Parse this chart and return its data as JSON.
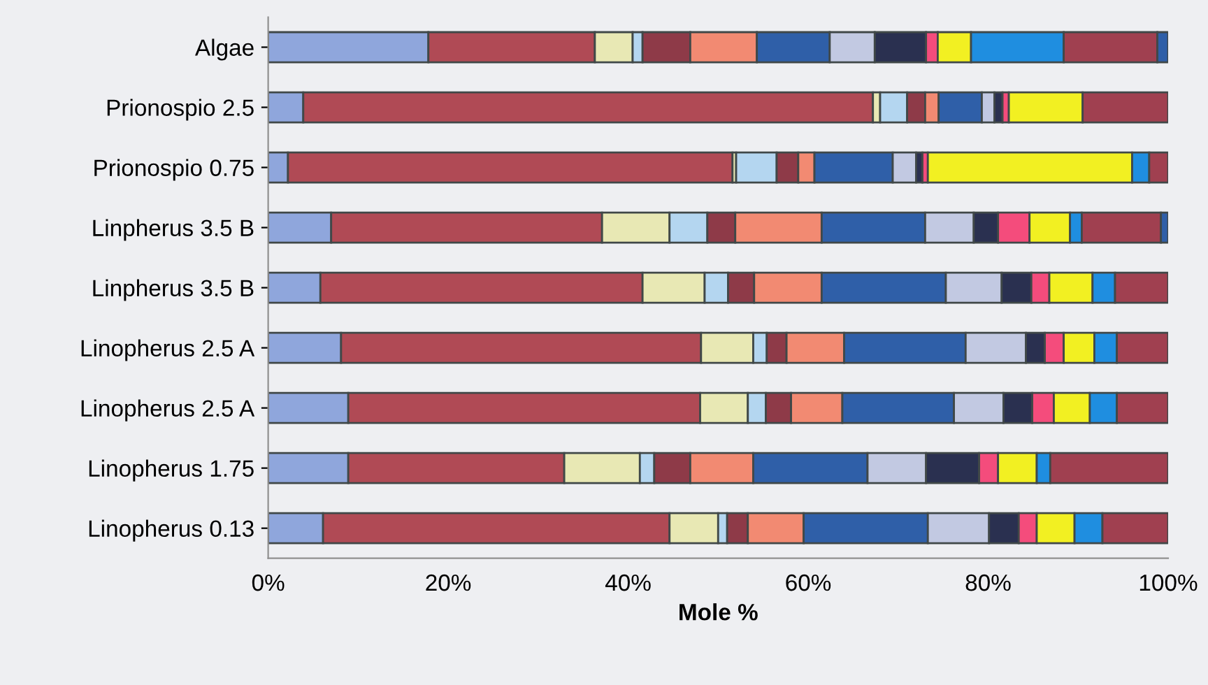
{
  "chart_data": {
    "type": "bar",
    "orientation": "horizontal",
    "stacked": true,
    "xlabel": "Mole %",
    "categories": [
      "Algae",
      "Prionospio 2.5",
      "Prionospio 0.75",
      "Linpherus 3.5 B",
      "Linpherus 3.5 B",
      "Linopherus 2.5 A",
      "Linopherus 2.5 A",
      "Linopherus 1.75",
      "Linopherus 0.13"
    ],
    "xlim": [
      0,
      100
    ],
    "xticks": [
      {
        "value": 0,
        "label": "0%"
      },
      {
        "value": 20,
        "label": "20%"
      },
      {
        "value": 40,
        "label": "40%"
      },
      {
        "value": 60,
        "label": "60%"
      },
      {
        "value": 80,
        "label": "80%"
      },
      {
        "value": 100,
        "label": "100%"
      }
    ],
    "grid": false,
    "series": [
      {
        "color": "#8fa6dc",
        "values": [
          17.8,
          3.9,
          2.2,
          7.0,
          5.8,
          8.1,
          8.9,
          8.9,
          6.1
        ]
      },
      {
        "color": "#b04a55",
        "values": [
          18.5,
          63.3,
          49.4,
          30.1,
          35.8,
          40.0,
          39.1,
          24.0,
          38.5
        ]
      },
      {
        "color": "#e8e8b4",
        "values": [
          4.2,
          0.8,
          0.4,
          7.5,
          6.9,
          5.8,
          5.3,
          8.4,
          5.4
        ]
      },
      {
        "color": "#b4d6f0",
        "values": [
          1.1,
          3.0,
          4.5,
          4.2,
          2.6,
          1.5,
          2.0,
          1.6,
          1.0
        ]
      },
      {
        "color": "#8e3a48",
        "values": [
          5.3,
          2.0,
          2.4,
          3.1,
          2.9,
          2.2,
          2.8,
          4.0,
          2.3
        ]
      },
      {
        "color": "#f28a72",
        "values": [
          7.4,
          1.5,
          1.8,
          9.6,
          7.5,
          6.4,
          5.7,
          7.0,
          6.2
        ]
      },
      {
        "color": "#2f5fa8",
        "values": [
          8.1,
          4.8,
          8.7,
          11.5,
          13.8,
          13.5,
          12.4,
          12.7,
          13.8
        ]
      },
      {
        "color": "#c2c9e2",
        "values": [
          5.0,
          1.4,
          2.6,
          5.4,
          6.2,
          6.7,
          5.5,
          6.5,
          6.8
        ]
      },
      {
        "color": "#2a3050",
        "values": [
          5.7,
          0.9,
          0.7,
          2.7,
          3.3,
          2.1,
          3.2,
          5.9,
          3.3
        ]
      },
      {
        "color": "#f44c7c",
        "values": [
          1.3,
          0.7,
          0.6,
          3.5,
          2.0,
          2.1,
          2.4,
          2.1,
          2.0
        ]
      },
      {
        "color": "#f2f022",
        "values": [
          3.7,
          8.2,
          22.7,
          4.5,
          4.8,
          3.4,
          4.0,
          4.3,
          4.2
        ]
      },
      {
        "color": "#1f8ee0",
        "values": [
          10.3,
          null,
          1.9,
          1.3,
          2.5,
          2.5,
          3.0,
          1.5,
          3.1
        ]
      },
      {
        "color": "#a04050",
        "values": [
          10.4,
          9.5,
          2.1,
          8.8,
          5.9,
          5.7,
          5.7,
          13.1,
          7.3
        ]
      },
      {
        "color": "#2f5fa8",
        "values": [
          1.2,
          null,
          null,
          0.8,
          null,
          null,
          null,
          null,
          null
        ]
      }
    ]
  }
}
